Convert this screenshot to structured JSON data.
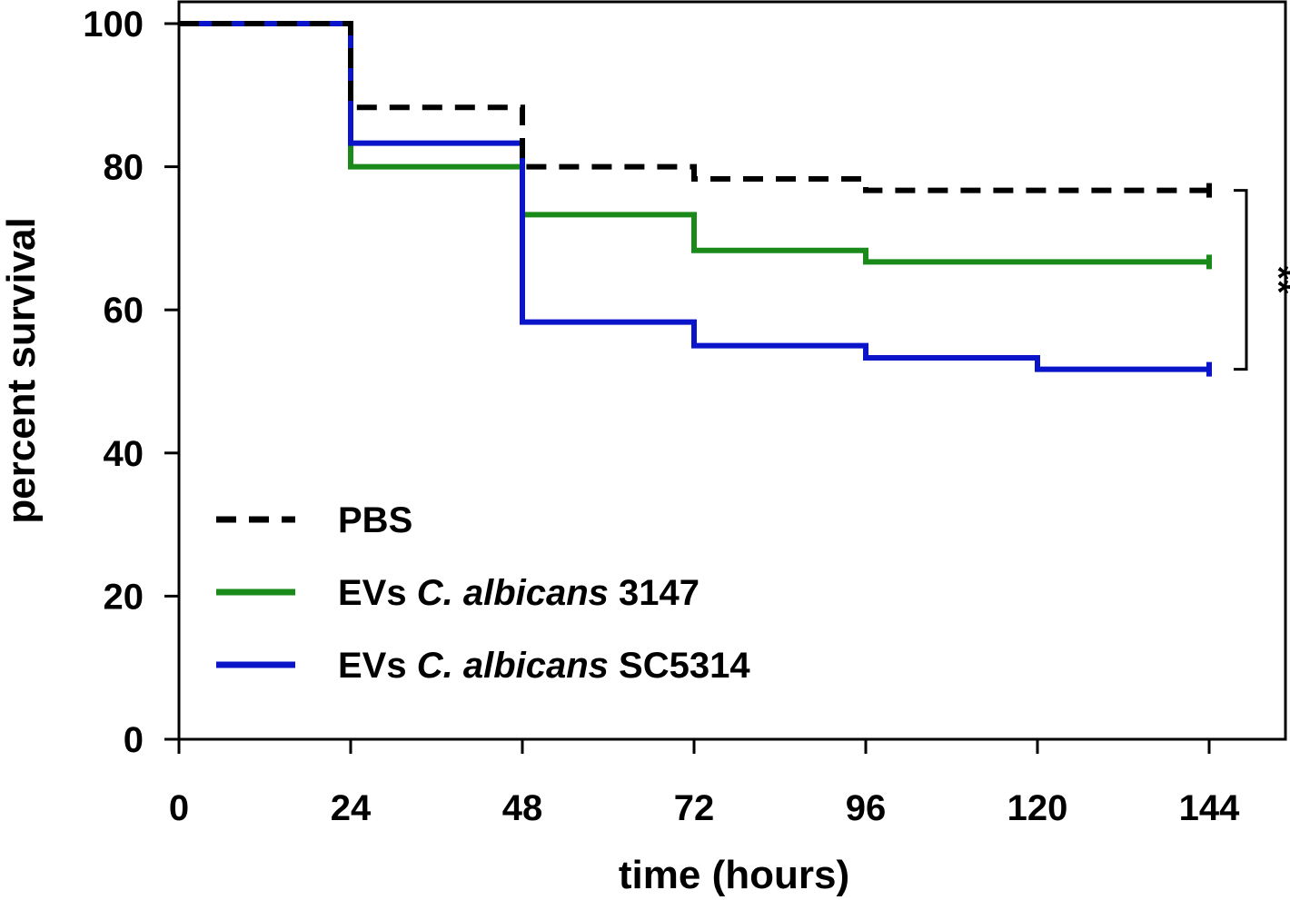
{
  "chart_data": {
    "type": "line",
    "subtype": "kaplan-meier survival step curve",
    "title": "",
    "xlabel": "time (hours)",
    "ylabel": "percent survival",
    "xlim": [
      0,
      150
    ],
    "ylim": [
      0,
      100
    ],
    "x_ticks": [
      0,
      24,
      48,
      72,
      96,
      120,
      144
    ],
    "y_ticks": [
      0,
      20,
      40,
      60,
      80,
      100
    ],
    "grid": false,
    "legend_position": "bottom-left",
    "series": [
      {
        "name": "PBS",
        "label_parts": [
          "PBS",
          "",
          ""
        ],
        "color": "#000000",
        "style": "dashed",
        "x": [
          0,
          24,
          48,
          72,
          96,
          144
        ],
        "y": [
          100,
          88.3,
          80,
          78.3,
          76.7,
          76.7
        ]
      },
      {
        "name": "EVs C. albicans 3147",
        "label_parts": [
          "EVs ",
          "C. albicans",
          " 3147"
        ],
        "color": "#1a8a1a",
        "style": "solid",
        "x": [
          0,
          24,
          48,
          72,
          96,
          144
        ],
        "y": [
          100,
          80,
          73.3,
          68.3,
          66.7,
          66.7
        ]
      },
      {
        "name": "EVs C. albicans SC5314",
        "label_parts": [
          "EVs ",
          "C. albicans",
          " SC5314"
        ],
        "color": "#0a14c8",
        "style": "solid",
        "x": [
          0,
          24,
          48,
          72,
          96,
          120,
          144
        ],
        "y": [
          100,
          83.3,
          58.3,
          55,
          53.3,
          51.7,
          51.7
        ]
      }
    ],
    "annotations": [
      {
        "text": "**",
        "type": "significance-bracket",
        "between_y": [
          76.7,
          51.7
        ],
        "at_x": 144
      }
    ]
  }
}
